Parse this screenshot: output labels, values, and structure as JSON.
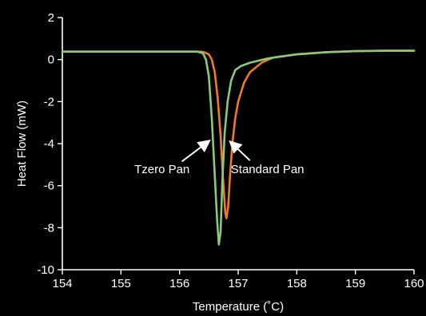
{
  "chart_data": {
    "type": "line",
    "title": "",
    "xlabel": "Temperature (˚C)",
    "ylabel": "Heat Flow (mW)",
    "xlim": [
      154,
      160
    ],
    "ylim": [
      -10,
      2
    ],
    "x_ticks": [
      154,
      155,
      156,
      157,
      158,
      159,
      160
    ],
    "y_ticks": [
      2,
      0,
      -2,
      -4,
      -6,
      -8,
      -10
    ],
    "grid": false,
    "legend": "none",
    "background": "#000000",
    "axis_color": "#ffffff",
    "series": [
      {
        "color": "#f07a28",
        "points": [
          [
            154.0,
            0.38
          ],
          [
            155.0,
            0.38
          ],
          [
            156.0,
            0.38
          ],
          [
            156.3,
            0.38
          ],
          [
            156.4,
            0.37
          ],
          [
            156.5,
            0.25
          ],
          [
            156.55,
            0.0
          ],
          [
            156.6,
            -0.6
          ],
          [
            156.65,
            -1.8
          ],
          [
            156.7,
            -3.6
          ],
          [
            156.74,
            -5.6
          ],
          [
            156.78,
            -7.3
          ],
          [
            156.8,
            -7.55
          ],
          [
            156.83,
            -7.0
          ],
          [
            156.86,
            -5.6
          ],
          [
            156.9,
            -4.0
          ],
          [
            156.95,
            -2.8
          ],
          [
            157.0,
            -2.0
          ],
          [
            157.1,
            -1.1
          ],
          [
            157.2,
            -0.6
          ],
          [
            157.4,
            -0.15
          ],
          [
            157.6,
            0.1
          ],
          [
            158.0,
            0.25
          ],
          [
            158.5,
            0.35
          ],
          [
            159.0,
            0.4
          ],
          [
            159.5,
            0.42
          ],
          [
            160.0,
            0.42
          ]
        ]
      },
      {
        "color": "#8cc97a",
        "points": [
          [
            154.0,
            0.38
          ],
          [
            155.0,
            0.38
          ],
          [
            156.0,
            0.38
          ],
          [
            156.3,
            0.38
          ],
          [
            156.4,
            0.3
          ],
          [
            156.45,
            0.0
          ],
          [
            156.5,
            -0.8
          ],
          [
            156.55,
            -2.8
          ],
          [
            156.6,
            -5.5
          ],
          [
            156.64,
            -7.6
          ],
          [
            156.67,
            -8.8
          ],
          [
            156.7,
            -8.2
          ],
          [
            156.73,
            -5.8
          ],
          [
            156.77,
            -3.5
          ],
          [
            156.82,
            -2.0
          ],
          [
            156.88,
            -1.0
          ],
          [
            156.95,
            -0.5
          ],
          [
            157.05,
            -0.3
          ],
          [
            157.2,
            -0.15
          ],
          [
            157.5,
            0.05
          ],
          [
            158.0,
            0.25
          ],
          [
            158.5,
            0.35
          ],
          [
            159.0,
            0.4
          ],
          [
            159.5,
            0.42
          ],
          [
            160.0,
            0.42
          ]
        ]
      }
    ],
    "annotations": [
      {
        "text": "Tzero Pan",
        "x": 155.7,
        "y": -5.4,
        "arrow_from": [
          156.04,
          -4.85
        ],
        "arrow_to": [
          156.49,
          -3.9
        ]
      },
      {
        "text": "Standard Pan",
        "x": 157.5,
        "y": -5.4,
        "arrow_from": [
          157.2,
          -4.8
        ],
        "arrow_to": [
          156.88,
          -3.95
        ]
      }
    ]
  }
}
